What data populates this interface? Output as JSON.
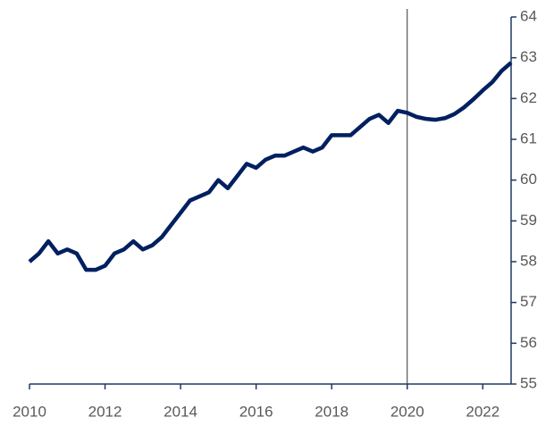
{
  "chart_data": {
    "type": "line",
    "x": [
      2010,
      2010.25,
      2010.5,
      2010.75,
      2011,
      2011.25,
      2011.5,
      2011.75,
      2012,
      2012.25,
      2012.5,
      2012.75,
      2013,
      2013.25,
      2013.5,
      2013.75,
      2014,
      2014.25,
      2014.5,
      2014.75,
      2015,
      2015.25,
      2015.5,
      2015.75,
      2016,
      2016.25,
      2016.5,
      2016.75,
      2017,
      2017.25,
      2017.5,
      2017.75,
      2018,
      2018.25,
      2018.5,
      2018.75,
      2019,
      2019.25,
      2019.5,
      2019.75,
      2020,
      2020.25,
      2020.5,
      2020.75,
      2021,
      2021.25,
      2021.5,
      2021.75,
      2022,
      2022.25,
      2022.5,
      2022.75
    ],
    "values": [
      58.0,
      58.2,
      58.5,
      58.2,
      58.3,
      58.2,
      57.8,
      57.8,
      57.9,
      58.2,
      58.3,
      58.5,
      58.3,
      58.4,
      58.6,
      58.9,
      59.2,
      59.5,
      59.6,
      59.7,
      60.0,
      59.8,
      60.1,
      60.4,
      60.3,
      60.5,
      60.6,
      60.6,
      60.7,
      60.8,
      60.7,
      60.8,
      61.1,
      61.1,
      61.1,
      61.3,
      61.5,
      61.6,
      61.4,
      61.7,
      61.65,
      61.55,
      61.5,
      61.48,
      61.52,
      61.62,
      61.78,
      61.98,
      62.2,
      62.4,
      62.68,
      62.88
    ],
    "color": "#002060",
    "xlim": [
      2010,
      2022.75
    ],
    "xticks": [
      2010,
      2012,
      2014,
      2016,
      2018,
      2020,
      2022
    ],
    "ylim": [
      55,
      64
    ],
    "yticks": [
      55,
      56,
      57,
      58,
      59,
      60,
      61,
      62,
      63,
      64
    ],
    "y_axis_side": "right",
    "vline": 2020
  }
}
